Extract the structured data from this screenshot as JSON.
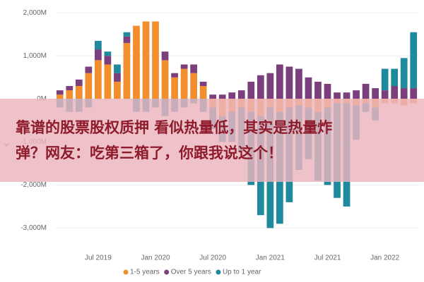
{
  "chart_data": {
    "type": "stacked-bar",
    "y_label": "€",
    "categories": [
      null,
      null,
      null,
      null,
      "Jul 2019",
      null,
      null,
      null,
      null,
      null,
      "Jan 2020",
      null,
      null,
      null,
      null,
      null,
      "Jul 2020",
      null,
      null,
      null,
      null,
      null,
      "Jan 2021",
      null,
      null,
      null,
      null,
      null,
      "Jul 2021",
      null,
      null,
      null,
      null,
      null,
      "Jan 2022",
      null,
      null,
      null
    ],
    "series": [
      {
        "name": "1-5 years",
        "color": "#f28e2b",
        "values": [
          100,
          200,
          300,
          600,
          900,
          800,
          400,
          1300,
          1700,
          1800,
          1800,
          900,
          500,
          700,
          600,
          300,
          -200,
          -400,
          -300,
          -200,
          -300,
          -400,
          -200,
          -300,
          -200,
          -150,
          -200,
          -300,
          -200,
          -100,
          -100,
          -150,
          -100,
          -200,
          -100,
          -100,
          -150,
          -100
        ]
      },
      {
        "name": "Over 5 years",
        "color": "#7b3f7e",
        "values": [
          100,
          100,
          150,
          150,
          250,
          200,
          200,
          150,
          0,
          0,
          0,
          200,
          100,
          100,
          200,
          100,
          100,
          100,
          150,
          200,
          400,
          550,
          600,
          800,
          750,
          700,
          500,
          400,
          350,
          150,
          150,
          200,
          350,
          250,
          200,
          300,
          250,
          250
        ]
      },
      {
        "name": "Up to 1 year",
        "color": "#1f8a9e",
        "values": [
          -200,
          -300,
          -300,
          -200,
          200,
          100,
          200,
          100,
          -300,
          -300,
          -200,
          -400,
          -300,
          -200,
          -100,
          -300,
          -500,
          -600,
          -700,
          -1000,
          -1700,
          -2300,
          -2800,
          -2600,
          -2200,
          -1500,
          -1200,
          -1600,
          -1800,
          -2200,
          -2400,
          -800,
          -200,
          -300,
          500,
          400,
          700,
          1300
        ]
      }
    ],
    "ylim": [
      -3500,
      2200
    ],
    "yticks": [
      {
        "value": -3000,
        "label": "-3,000M"
      },
      {
        "value": -2000,
        "label": "-2,000M"
      },
      {
        "value": -1000,
        "label": "-1,000M"
      },
      {
        "value": 0,
        "label": "0M"
      },
      {
        "value": 1000,
        "label": "1,000M"
      },
      {
        "value": 2000,
        "label": "2,000M"
      }
    ],
    "grid": true,
    "legend": "bottom"
  },
  "banner": [
    "靠谱的股票股权质押 看似热量低，其实是热量炸",
    "弹？网友：吃第三箱了，你跟我说这个！"
  ]
}
